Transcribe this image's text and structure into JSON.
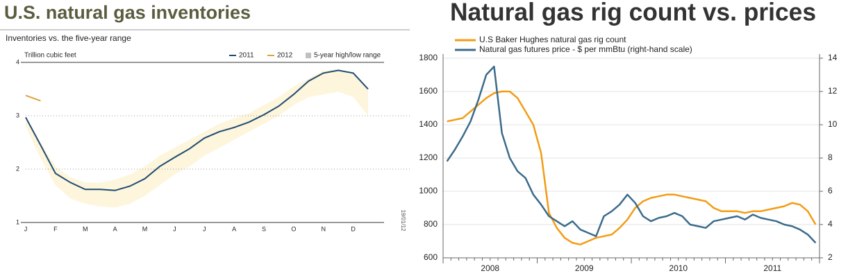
{
  "chart_data": [
    {
      "type": "line",
      "title": "U.S. natural gas inventories",
      "subtitle": "Inventories vs. the five-year range",
      "y_label": "Trillion cubic feet",
      "categories": [
        "J",
        null,
        "F",
        null,
        "M",
        null,
        "A",
        null,
        "M",
        null,
        "J",
        null,
        "J",
        null,
        "A",
        null,
        "S",
        null,
        "O",
        null,
        "N",
        null,
        "D",
        null
      ],
      "ylim": [
        1,
        4
      ],
      "yticks": [
        1,
        2,
        3,
        4
      ],
      "series": [
        {
          "name": "2011",
          "color": "#1d4a72",
          "values": [
            2.97,
            2.45,
            1.92,
            1.75,
            1.62,
            1.62,
            1.6,
            1.68,
            1.82,
            2.05,
            2.22,
            2.38,
            2.58,
            2.7,
            2.78,
            2.88,
            3.02,
            3.18,
            3.4,
            3.65,
            3.8,
            3.85,
            3.8,
            3.5
          ]
        },
        {
          "name": "2012",
          "color": "#e0a040",
          "values": [
            3.38,
            3.28,
            null,
            null,
            null,
            null,
            null,
            null,
            null,
            null,
            null,
            null,
            null,
            null,
            null,
            null,
            null,
            null,
            null,
            null,
            null,
            null,
            null,
            null
          ]
        }
      ],
      "range": {
        "name": "5-year high/low range",
        "color": "#fdf5dc",
        "legend_color": "#c0c0c0",
        "high": [
          3.0,
          2.5,
          2.05,
          1.85,
          1.75,
          1.75,
          1.8,
          1.9,
          2.05,
          2.25,
          2.4,
          2.55,
          2.7,
          2.85,
          2.95,
          3.05,
          3.2,
          3.35,
          3.55,
          3.7,
          3.85,
          3.87,
          3.8,
          3.5
        ],
        "low": [
          2.8,
          2.2,
          1.7,
          1.45,
          1.35,
          1.3,
          1.28,
          1.35,
          1.5,
          1.7,
          1.9,
          2.05,
          2.25,
          2.4,
          2.55,
          2.7,
          2.85,
          3.0,
          3.2,
          3.35,
          3.4,
          3.45,
          3.35,
          3.0
        ]
      }
    },
    {
      "type": "line",
      "title": "Natural gas rig count vs. prices",
      "note": "19/01/12",
      "categories": [
        null,
        null,
        null,
        null,
        null,
        null,
        "2008",
        null,
        null,
        null,
        null,
        null,
        null,
        null,
        null,
        null,
        null,
        null,
        "2009",
        null,
        null,
        null,
        null,
        null,
        null,
        null,
        null,
        null,
        null,
        null,
        "2010",
        null,
        null,
        null,
        null,
        null,
        null,
        null,
        null,
        null,
        null,
        null,
        "2011",
        null,
        null,
        null,
        null,
        null
      ],
      "ylim": [
        600,
        1800
      ],
      "yticks": [
        600,
        800,
        1000,
        1200,
        1400,
        1600,
        1800
      ],
      "y2lim": [
        2,
        14
      ],
      "y2ticks": [
        2,
        4,
        6,
        8,
        10,
        12,
        14
      ],
      "series": [
        {
          "name": "U.S Baker Hughes natural gas rig count",
          "color": "#f39c12",
          "values": [
            1420,
            1430,
            1440,
            1480,
            1520,
            1560,
            1590,
            1600,
            1600,
            1560,
            1480,
            1400,
            1230,
            870,
            780,
            720,
            690,
            680,
            700,
            720,
            730,
            740,
            780,
            830,
            900,
            940,
            960,
            970,
            980,
            980,
            970,
            960,
            950,
            940,
            900,
            880,
            880,
            880,
            870,
            880,
            880,
            890,
            900,
            910,
            930,
            920,
            880,
            800
          ]
        },
        {
          "name": "Natural gas futures price - $ per mmBtu (right-hand scale)",
          "color": "#3b6b8a",
          "axis": "y2",
          "values": [
            7.8,
            8.5,
            9.3,
            10.2,
            11.5,
            13.0,
            13.5,
            9.5,
            8.0,
            7.2,
            6.8,
            5.8,
            5.2,
            4.5,
            4.2,
            3.9,
            4.2,
            3.7,
            3.5,
            3.3,
            4.5,
            4.8,
            5.2,
            5.8,
            5.3,
            4.5,
            4.2,
            4.4,
            4.5,
            4.7,
            4.5,
            4.0,
            3.9,
            3.8,
            4.2,
            4.3,
            4.4,
            4.5,
            4.3,
            4.6,
            4.4,
            4.3,
            4.2,
            4.0,
            3.9,
            3.7,
            3.4,
            2.9
          ]
        }
      ]
    }
  ]
}
